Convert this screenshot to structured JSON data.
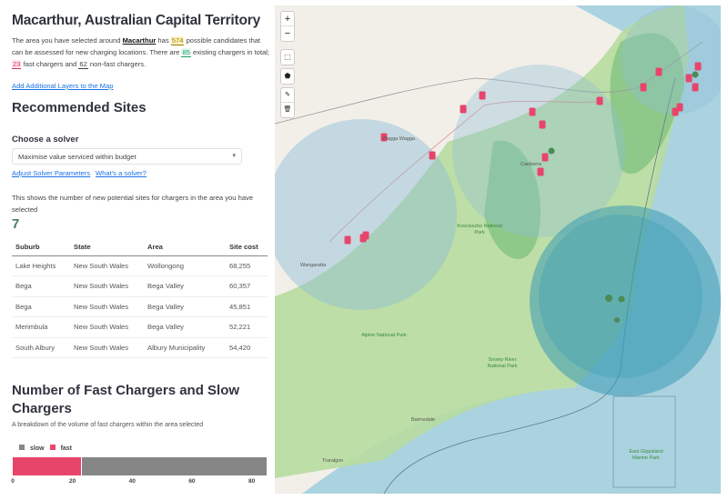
{
  "title": "Macarthur, Australian Capital Territory",
  "intro": {
    "p1": "The area you have selected around ",
    "place": "Macarthur",
    "p2": " has ",
    "candidates": "574",
    "p3": " possible candidates that can be assessed for new charging locations. There are ",
    "existing": "85",
    "p4": " existing chargers in total; ",
    "fast": "23",
    "p5": " fast chargers and ",
    "slow": "62",
    "p6": " non-fast chargers."
  },
  "links": {
    "add_layers": "Add Additional Layers to the Map",
    "adjust": "Adjust Solver Parameters",
    "what": "What's a solver?"
  },
  "recommended_heading": "Recommended Sites",
  "solver": {
    "label": "Choose a solver",
    "value": "Maximise value serviced within budget"
  },
  "sites_desc": "This shows the number of new potential sites for chargers in the area you have selected",
  "sites_count": "7",
  "table": {
    "headers": [
      "Suburb",
      "State",
      "Area",
      "Site cost"
    ],
    "rows": [
      [
        "Lake Heights",
        "New South Wales",
        "Wollongong",
        "68,255"
      ],
      [
        "Bega",
        "New South Wales",
        "Bega Valley",
        "60,357"
      ],
      [
        "Bega",
        "New South Wales",
        "Bega Valley",
        "45,851"
      ],
      [
        "Merimbula",
        "New South Wales",
        "Bega Valley",
        "52,221"
      ],
      [
        "South Albury",
        "New South Wales",
        "Albury Municipality",
        "54,420"
      ]
    ]
  },
  "chart_heading": "Number of Fast Chargers and Slow Chargers",
  "chart_sub": "A breakdown of the volume of fast chargers within the area selected",
  "chart_data": {
    "type": "bar",
    "orientation": "horizontal-stacked",
    "series": [
      {
        "name": "fast",
        "value": 23,
        "color": "#e8456b"
      },
      {
        "name": "slow",
        "value": 62,
        "color": "#868686"
      }
    ],
    "legend": [
      "slow",
      "fast"
    ],
    "xticks": [
      "0",
      "20",
      "40",
      "60",
      "80"
    ],
    "xlim": [
      0,
      85
    ]
  },
  "map": {
    "controls": {
      "zoom_in": "+",
      "zoom_out": "−"
    },
    "labels": {
      "wagga": "Wagga Wagga",
      "canberra": "Canberra",
      "wangaratta": "Wangaratta",
      "kosciuszko": "Kosciuszko National Park",
      "alpine": "Alpine National Park",
      "snowy": "Snowy River National Park",
      "bairnsdale": "Bairnsdale",
      "traralgon": "Traralgon",
      "marine": "East Gippsland Marine Park"
    }
  }
}
